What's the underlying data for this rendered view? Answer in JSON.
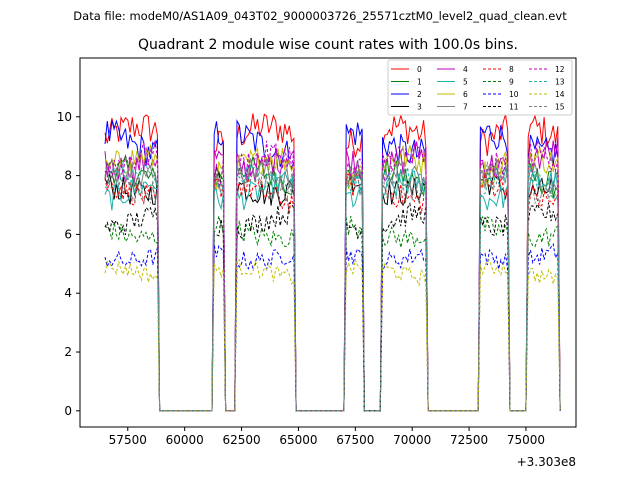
{
  "chart_data": {
    "type": "line",
    "suptitle": "Data file: modeM0/AS1A09_043T02_9000003726_25571cztM0_level2_quad_clean.evt",
    "title": "Quadrant 2 module wise count rates with 100.0s bins.",
    "xlabel": "",
    "ylabel": "",
    "x_offset_label": "+3.303e8",
    "xlim": [
      55400,
      77200
    ],
    "ylim": [
      -0.55,
      12.0
    ],
    "x_ticks": [
      57500,
      60000,
      62500,
      65000,
      67500,
      70000,
      72500,
      75000
    ],
    "x_tick_labels": [
      "57500",
      "60000",
      "62500",
      "65000",
      "67500",
      "70000",
      "72500",
      "75000"
    ],
    "y_ticks": [
      0,
      2,
      4,
      6,
      8,
      10
    ],
    "y_tick_labels": [
      "0",
      "2",
      "4",
      "6",
      "8",
      "10"
    ],
    "bin_seconds": 100,
    "x_start": 56500,
    "x_end": 76500,
    "active_intervals": [
      [
        56500,
        58900
      ],
      [
        61300,
        61800
      ],
      [
        62300,
        64900
      ],
      [
        67100,
        67900
      ],
      [
        68700,
        70700
      ],
      [
        73000,
        74300
      ],
      [
        75100,
        76500
      ]
    ],
    "legend": {
      "position": "top-right",
      "columns": 4
    },
    "series": [
      {
        "name": "0",
        "level": 9.3,
        "color": "#ff0000",
        "dash": "solid"
      },
      {
        "name": "1",
        "level": 7.9,
        "color": "#008000",
        "dash": "solid"
      },
      {
        "name": "2",
        "level": 9.1,
        "color": "#0000ff",
        "dash": "solid"
      },
      {
        "name": "3",
        "level": 7.7,
        "color": "#000000",
        "dash": "solid"
      },
      {
        "name": "4",
        "level": 8.6,
        "color": "#bf00bf",
        "dash": "solid"
      },
      {
        "name": "5",
        "level": 7.5,
        "color": "#20b2aa",
        "dash": "solid"
      },
      {
        "name": "6",
        "level": 8.3,
        "color": "#bfbf00",
        "dash": "solid"
      },
      {
        "name": "7",
        "level": 7.9,
        "color": "#808080",
        "dash": "solid"
      },
      {
        "name": "8",
        "level": 7.4,
        "color": "#ff0000",
        "dash": "dashed"
      },
      {
        "name": "9",
        "level": 6.1,
        "color": "#008000",
        "dash": "dashed"
      },
      {
        "name": "10",
        "level": 5.3,
        "color": "#0000ff",
        "dash": "dashed"
      },
      {
        "name": "11",
        "level": 6.5,
        "color": "#000000",
        "dash": "dashed"
      },
      {
        "name": "12",
        "level": 8.4,
        "color": "#bf00bf",
        "dash": "dashed"
      },
      {
        "name": "13",
        "level": 7.7,
        "color": "#20b2aa",
        "dash": "dashed"
      },
      {
        "name": "14",
        "level": 4.7,
        "color": "#bfbf00",
        "dash": "dashed"
      },
      {
        "name": "15",
        "level": 7.8,
        "color": "#808080",
        "dash": "dashed"
      }
    ]
  }
}
